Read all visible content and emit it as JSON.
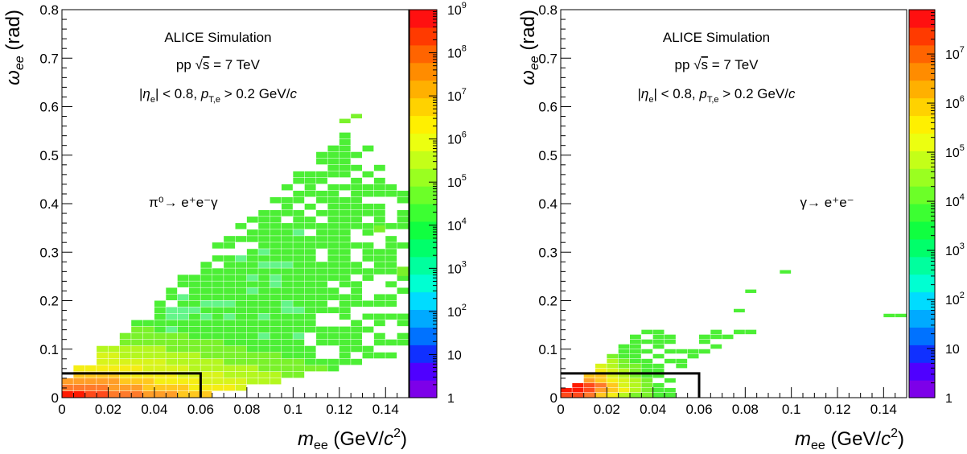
{
  "chart_data": [
    {
      "type": "heatmap",
      "panel": "left",
      "annotations": {
        "line1": "ALICE Simulation",
        "line2_prefix": "pp",
        "line2_sqrt": "√",
        "line2_s": "s",
        "line2_suffix": " = 7 TeV",
        "line3_eta": "η",
        "line3_eta_sub": "e",
        "line3_mid": " < 0.8, ",
        "line3_p": "p",
        "line3_p_sub": "T,e",
        "line3_tail": " > 0.2 GeV/",
        "line3_c": "c",
        "process": "π⁰→ e⁺e⁻γ"
      },
      "xlabel": {
        "m": "m",
        "sub": "ee",
        "unit_open": " (GeV/",
        "c": "c",
        "sup": "2",
        "unit_close": ")"
      },
      "ylabel": {
        "omega": "ω",
        "sub": "ee",
        "unit": " (rad)"
      },
      "xlim": [
        0,
        0.15
      ],
      "ylim": [
        0,
        0.8
      ],
      "x_ticks": [
        "0",
        "0.02",
        "0.04",
        "0.06",
        "0.08",
        "0.1",
        "0.12",
        "0.14"
      ],
      "x_tick_values": [
        0,
        0.02,
        0.04,
        0.06,
        0.08,
        0.1,
        0.12,
        0.14
      ],
      "y_ticks": [
        "0",
        "0.1",
        "0.2",
        "0.3",
        "0.4",
        "0.5",
        "0.6",
        "0.7",
        "0.8"
      ],
      "y_tick_values": [
        0,
        0.1,
        0.2,
        0.3,
        0.4,
        0.5,
        0.6,
        0.7,
        0.8
      ],
      "zscale": "log",
      "zlim": [
        1,
        1000000000
      ],
      "z_tick_values": [
        1,
        10,
        100,
        1000,
        10000,
        100000,
        1000000,
        10000000,
        100000000,
        1000000000
      ],
      "z_ticks": [
        {
          "base": "1",
          "exp": ""
        },
        {
          "base": "10",
          "exp": ""
        },
        {
          "base": "10",
          "exp": "2"
        },
        {
          "base": "10",
          "exp": "3"
        },
        {
          "base": "10",
          "exp": "4"
        },
        {
          "base": "10",
          "exp": "5"
        },
        {
          "base": "10",
          "exp": "6"
        },
        {
          "base": "10",
          "exp": "7"
        },
        {
          "base": "10",
          "exp": "8"
        },
        {
          "base": "10",
          "exp": "9"
        }
      ],
      "bin_width": [
        0.005,
        0.01
      ],
      "cut_box": {
        "m_max": 0.06,
        "omega_max": 0.05
      },
      "description": "Triangular band of counts from omega≈0 at m=0 widening with mass up to omega≈0.58 at m≈0.125; highest density (orange/red) near m<0.03, omega<0.06."
    },
    {
      "type": "heatmap",
      "panel": "right",
      "annotations": {
        "line1": "ALICE Simulation",
        "line2_prefix": "pp",
        "line2_sqrt": "√",
        "line2_s": "s",
        "line2_suffix": " = 7 TeV",
        "line3_eta": "η",
        "line3_eta_sub": "e",
        "line3_mid": " < 0.8, ",
        "line3_p": "p",
        "line3_p_sub": "T,e",
        "line3_tail": " > 0.2 GeV/",
        "line3_c": "c",
        "process": "γ→ e⁺e⁻"
      },
      "xlabel": {
        "m": "m",
        "sub": "ee",
        "unit_open": " (GeV/",
        "c": "c",
        "sup": "2",
        "unit_close": ")"
      },
      "ylabel": {
        "omega": "ω",
        "sub": "ee",
        "unit": " (rad)"
      },
      "xlim": [
        0,
        0.15
      ],
      "ylim": [
        0,
        0.8
      ],
      "x_ticks": [
        "0",
        "0.02",
        "0.04",
        "0.06",
        "0.08",
        "0.1",
        "0.12",
        "0.14"
      ],
      "x_tick_values": [
        0,
        0.02,
        0.04,
        0.06,
        0.08,
        0.1,
        0.12,
        0.14
      ],
      "y_ticks": [
        "0",
        "0.1",
        "0.2",
        "0.3",
        "0.4",
        "0.5",
        "0.6",
        "0.7",
        "0.8"
      ],
      "y_tick_values": [
        0,
        0.1,
        0.2,
        0.3,
        0.4,
        0.5,
        0.6,
        0.7,
        0.8
      ],
      "zscale": "log",
      "zlim": [
        1,
        80000000
      ],
      "z_tick_values": [
        1,
        10,
        100,
        1000,
        10000,
        100000,
        1000000,
        10000000
      ],
      "z_ticks": [
        {
          "base": "1",
          "exp": ""
        },
        {
          "base": "10",
          "exp": ""
        },
        {
          "base": "10",
          "exp": "2"
        },
        {
          "base": "10",
          "exp": "3"
        },
        {
          "base": "10",
          "exp": "4"
        },
        {
          "base": "10",
          "exp": "5"
        },
        {
          "base": "10",
          "exp": "6"
        },
        {
          "base": "10",
          "exp": "7"
        }
      ],
      "bin_width": [
        0.005,
        0.01
      ],
      "cut_box": {
        "m_max": 0.06,
        "omega_max": 0.05
      },
      "description": "Counts concentrated at very low mass and opening angle (red/orange at m<0.015, omega<0.03), with sparse green bins out to m≈0.05, omega≈0.14 and isolated bins at higher mass."
    }
  ]
}
